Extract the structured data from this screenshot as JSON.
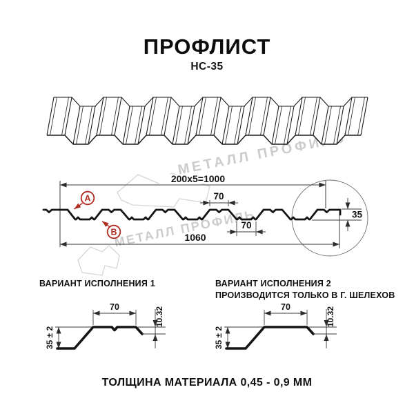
{
  "header": {
    "title": "ПРОФЛИСТ",
    "subtitle": "НС-35"
  },
  "watermark": {
    "text": "МЕТАЛЛ ПРОФИЛЬ",
    "logo": "metall-profil-logo"
  },
  "cross_section": {
    "dim_pitch": "200x5=1000",
    "dim_crest_width": "70",
    "dim_valley_width": "70",
    "dim_overall_width": "1060",
    "dim_height": "35",
    "marker_a": "A",
    "marker_b": "B"
  },
  "variant1": {
    "label": "ВАРИАНТ ИСПОЛНЕНИЯ 1",
    "dim_width": "70",
    "dim_height": "35 ± 2",
    "dim_lip": "10.32"
  },
  "variant2": {
    "label": "ВАРИАНТ ИСПОЛНЕНИЯ 2",
    "note": "ПРОИЗВОДИТСЯ ТОЛЬКО В Г. ШЕЛЕХОВ",
    "dim_width": "70",
    "dim_height": "35 ± 2",
    "dim_lip": "10.32"
  },
  "footer": {
    "text": "ТОЛЩИНА МАТЕРИАЛА 0,45 - 0,9 ММ"
  },
  "colors": {
    "accent": "#b02a20",
    "line": "#141414",
    "watermark": "#cccccc"
  }
}
